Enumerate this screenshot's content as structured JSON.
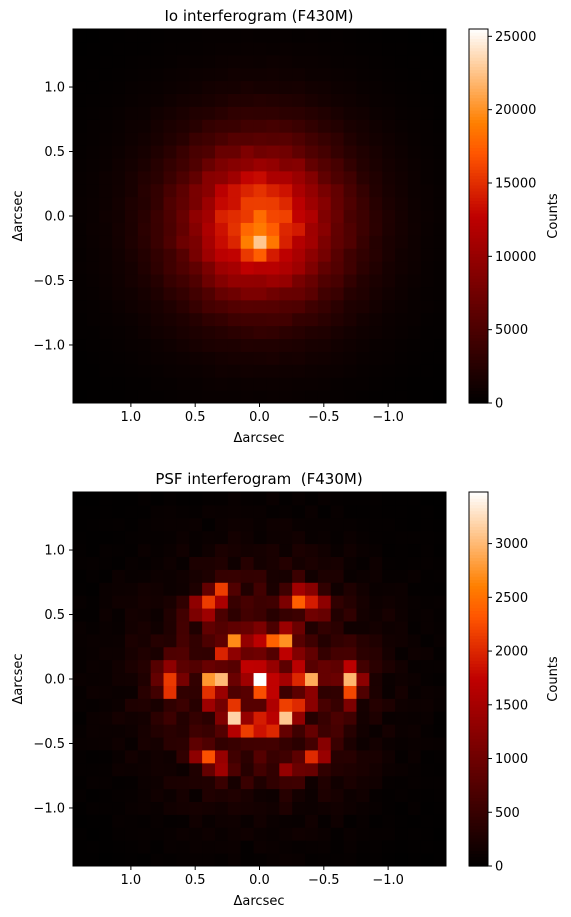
{
  "chart_data": [
    {
      "type": "heatmap",
      "title": "Io interferogram (F430M)",
      "xlabel": "Δarcsec",
      "ylabel": "Δarcsec",
      "xlim": [
        1.45,
        -1.45
      ],
      "ylim": [
        -1.45,
        1.45
      ],
      "x_ticks": [
        1.0,
        0.5,
        0.0,
        -0.5,
        -1.0
      ],
      "x_tick_labels": [
        "1.0",
        "0.5",
        "0.0",
        "−0.5",
        "−1.0"
      ],
      "y_ticks": [
        1.0,
        0.5,
        0.0,
        -0.5,
        -1.0
      ],
      "y_tick_labels": [
        "1.0",
        "0.5",
        "0.0",
        "−0.5",
        "−1.0"
      ],
      "colormap": "gist_heat",
      "grid": false,
      "colorbar": {
        "label": "Counts",
        "range": [
          0,
          25500
        ],
        "ticks": [
          0,
          5000,
          10000,
          15000,
          20000,
          25000
        ],
        "tick_labels": [
          "0",
          "5000",
          "10000",
          "15000",
          "20000",
          "25000"
        ]
      },
      "grid_size": 29,
      "pixel_scale_arcsec": 0.1,
      "peak_counts": 25500,
      "peak_offset_arcsec": [
        0.0,
        -0.2
      ]
    },
    {
      "type": "heatmap",
      "title": "PSF interferogram  (F430M)",
      "xlabel": "Δarcsec",
      "ylabel": "Δarcsec",
      "xlim": [
        1.45,
        -1.45
      ],
      "ylim": [
        -1.45,
        1.45
      ],
      "x_ticks": [
        1.0,
        0.5,
        0.0,
        -0.5,
        -1.0
      ],
      "x_tick_labels": [
        "1.0",
        "0.5",
        "0.0",
        "−0.5",
        "−1.0"
      ],
      "y_ticks": [
        1.0,
        0.5,
        0.0,
        -0.5,
        -1.0
      ],
      "y_tick_labels": [
        "1.0",
        "0.5",
        "0.0",
        "−0.5",
        "−1.0"
      ],
      "colormap": "gist_heat",
      "grid": false,
      "colorbar": {
        "label": "Counts",
        "range": [
          0,
          3480
        ],
        "ticks": [
          0,
          500,
          1000,
          1500,
          2000,
          2500,
          3000
        ],
        "tick_labels": [
          "0",
          "500",
          "1000",
          "1500",
          "2000",
          "2500",
          "3000"
        ]
      },
      "grid_size": 29,
      "pixel_scale_arcsec": 0.1,
      "peak_counts": 3480,
      "peak_offset_arcsec": [
        0.0,
        0.0
      ]
    }
  ]
}
